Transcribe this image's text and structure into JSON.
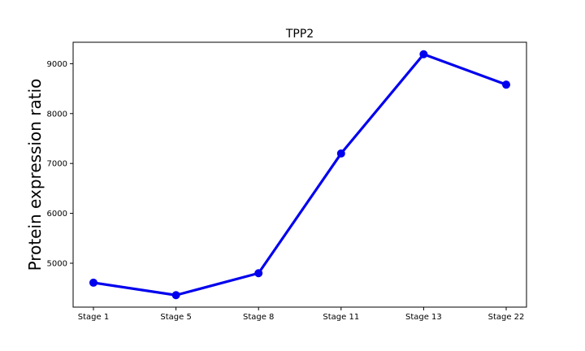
{
  "chart_data": {
    "type": "line",
    "title": "TPP2",
    "xlabel": "",
    "ylabel": "Protein expression ratio",
    "categories": [
      "Stage 1",
      "Stage 5",
      "Stage 8",
      "Stage 11",
      "Stage 13",
      "Stage 22"
    ],
    "series": [
      {
        "color": "#0000ee",
        "values": [
          4610,
          4360,
          4800,
          7200,
          9190,
          8580
        ]
      }
    ],
    "ylim": [
      4120,
      9430
    ],
    "yticks": [
      5000,
      6000,
      7000,
      8000,
      9000
    ],
    "grid": false,
    "legend": "none"
  }
}
